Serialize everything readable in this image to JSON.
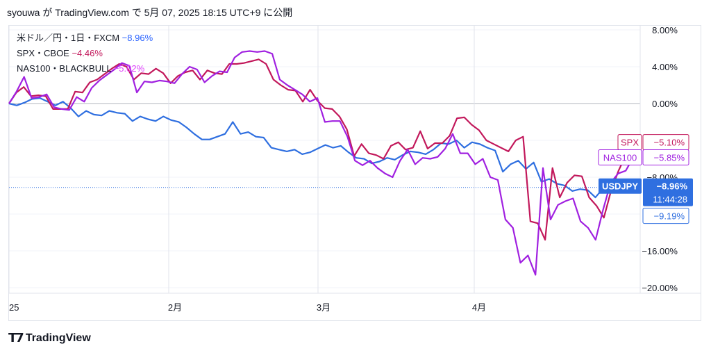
{
  "header": {
    "text": "syouwa が TradingView.com で 5月 07, 2025 18:15 UTC+9 に公開"
  },
  "legend": [
    {
      "symbol": "米ドル／円・1日・FXCM",
      "value": "−8.96%",
      "color": "#2962ff"
    },
    {
      "symbol": "SPX・CBOE",
      "value": "−4.46%",
      "color": "#c2185b"
    },
    {
      "symbol": "NAS100・BLACKBULL",
      "value": "−5.02%",
      "color": "#e040fb"
    }
  ],
  "footer": {
    "brand": "TradingView",
    "logo": "tradingview-logo-icon"
  },
  "colors": {
    "usdjpy": "#2f6fe0",
    "spx": "#c2185b",
    "nas100": "#a020e0",
    "grid": "#f0f3fa"
  },
  "chart_data": {
    "type": "line",
    "x_ticks": [
      "25",
      "2月",
      "3月",
      "4月"
    ],
    "y_ticks": [
      "8.00%",
      "4.00%",
      "0.00%",
      "−8.00%",
      "−16.00%",
      "−20.00%"
    ],
    "ylim": [
      -20.5,
      8
    ],
    "badges": [
      {
        "label": "SPX",
        "value": "−5.10%",
        "y": -4.2,
        "kind": "spx"
      },
      {
        "label": "NAS100",
        "value": "−5.85%",
        "y": -5.85,
        "kind": "nas"
      },
      {
        "label": "USDJPY",
        "value": "−8.96%",
        "sub": "11:44:28",
        "y": -8.96,
        "kind": "usd"
      },
      {
        "value": "−9.19%",
        "y": -12.2,
        "kind": "usd-outline"
      }
    ],
    "series": [
      {
        "name": "USDJPY",
        "key": "usdjpy",
        "values": [
          0,
          -0.2,
          0.1,
          0.5,
          0.6,
          0.2,
          -0.2,
          0.2,
          -0.5,
          -1.4,
          -0.8,
          -1.2,
          -1.3,
          -0.8,
          -1.0,
          -1.1,
          -1.9,
          -1.4,
          -1.7,
          -1.9,
          -1.4,
          -1.8,
          -2.0,
          -2.6,
          -3.3,
          -3.9,
          -3.9,
          -3.6,
          -3.3,
          -2.0,
          -3.3,
          -3.1,
          -3.6,
          -3.7,
          -4.8,
          -5.0,
          -5.2,
          -5.0,
          -5.5,
          -5.3,
          -4.9,
          -4.5,
          -4.8,
          -4.6,
          -5.3,
          -5.9,
          -6.0,
          -6.5,
          -6.3,
          -5.9,
          -6.1,
          -5.6,
          -5.2,
          -5.3,
          -5.5,
          -5.0,
          -4.3,
          -4.4,
          -4.0,
          -4.8,
          -4.2,
          -4.4,
          -4.8,
          -5.1,
          -7.4,
          -6.6,
          -6.2,
          -7.1,
          -6.4,
          -8.5,
          -8.2,
          -8.7,
          -8.9,
          -9.5,
          -9.3,
          -9.4,
          -10.2,
          -9.2,
          -8.8,
          -9.3,
          -9.0
        ]
      },
      {
        "name": "SPX",
        "key": "spx",
        "values": [
          0,
          1.2,
          1.8,
          0.8,
          0.9,
          0.8,
          -0.6,
          -0.6,
          -0.6,
          1.3,
          1.2,
          2.3,
          2.6,
          3.2,
          3.8,
          4.3,
          4.0,
          2.6,
          3.3,
          3.2,
          3.8,
          3.3,
          2.2,
          3.0,
          3.4,
          3.6,
          2.6,
          3.6,
          3.3,
          3.2,
          4.3,
          4.3,
          4.4,
          4.6,
          4.8,
          4.3,
          2.6,
          2.0,
          1.5,
          1.4,
          0.2,
          1.5,
          0.3,
          -0.5,
          -0.6,
          -1.4,
          -2.8,
          -5.7,
          -4.4,
          -5.4,
          -5.6,
          -6.0,
          -4.6,
          -4.2,
          -5.0,
          -4.8,
          -3.0,
          -4.9,
          -4.3,
          -4.3,
          -3.5,
          -1.6,
          -1.5,
          -2.3,
          -2.9,
          -4.0,
          -4.4,
          -4.8,
          -5.2,
          -4.0,
          -3.6,
          -12.8,
          -13.0,
          -14.8,
          -7.0,
          -10.2,
          -8.6,
          -7.8,
          -7.9,
          -10.2,
          -11.1,
          -12.4,
          -9.4,
          -7.3,
          -5.6,
          -5.1
        ]
      },
      {
        "name": "NAS100",
        "key": "nas",
        "values": [
          0,
          1.3,
          2.9,
          0.6,
          0.7,
          1.0,
          -0.4,
          -0.6,
          -0.7,
          0.7,
          0.2,
          1.7,
          2.5,
          3.1,
          3.7,
          4.4,
          4.1,
          1.2,
          2.4,
          2.3,
          2.5,
          2.4,
          2.2,
          3.2,
          4.0,
          3.7,
          2.3,
          3.0,
          3.5,
          3.4,
          5.0,
          5.6,
          5.7,
          5.6,
          5.7,
          5.4,
          2.6,
          2.0,
          1.5,
          1.0,
          0.2,
          0.6,
          -2.0,
          -1.9,
          -1.9,
          -3.6,
          -6.2,
          -6.7,
          -6.2,
          -7.0,
          -7.6,
          -8.0,
          -6.2,
          -5.0,
          -6.6,
          -5.9,
          -6.0,
          -5.8,
          -4.9,
          -3.3,
          -5.4,
          -5.4,
          -6.6,
          -6.0,
          -8.0,
          -8.3,
          -12.6,
          -13.5,
          -17.3,
          -16.5,
          -18.6,
          -7.0,
          -12.6,
          -11.0,
          -10.6,
          -10.3,
          -12.8,
          -13.5,
          -14.8,
          -11.5,
          -8.6,
          -7.6,
          -7.3,
          -5.85
        ]
      }
    ]
  }
}
